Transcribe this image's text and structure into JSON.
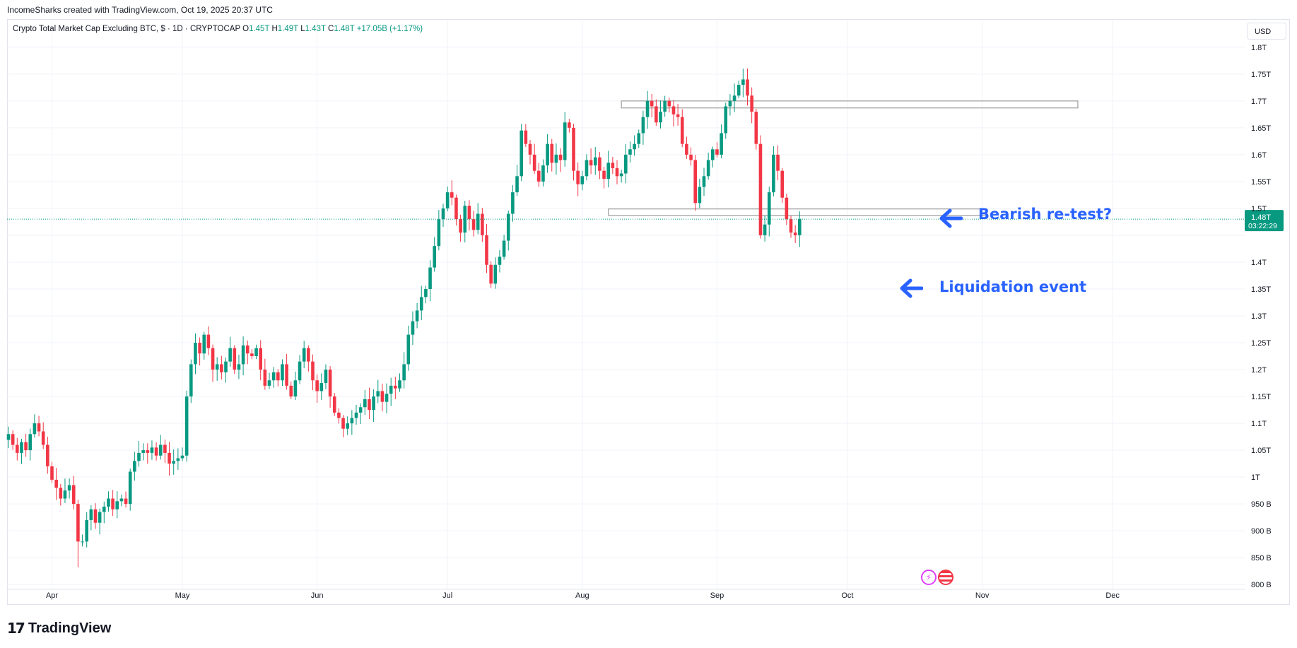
{
  "header": {
    "credit": "IncomeSharks created with TradingView.com, Oct 19, 2025 20:37 UTC"
  },
  "legend": {
    "symbol": "Crypto Total Market Cap Excluding BTC, $ · 1D · CRYPTOCAP",
    "o_label": "O",
    "o_value": "1.45T",
    "h_label": "H",
    "h_value": "1.49T",
    "l_label": "L",
    "l_value": "1.43T",
    "c_label": "C",
    "c_value": "1.48T",
    "change": "+17.05B (+1.17%)"
  },
  "currency_button": "USD",
  "price_tag": {
    "price": "1.48T",
    "countdown": "03:22:29",
    "color": "#089981"
  },
  "annotations": {
    "retest": "Bearish re-test?",
    "liquidation": "Liquidation event",
    "color": "#2962ff"
  },
  "footer": {
    "logo_mark": "17",
    "logo_text": "TradingView"
  },
  "events": [
    "lightning-icon",
    "us-flag-icon"
  ],
  "colors": {
    "up": "#089981",
    "down": "#f23645",
    "grid": "#f0f3fa",
    "axis_text": "#131722"
  },
  "chart_data": {
    "type": "candlestick",
    "title": "Crypto Total Market Cap Excluding BTC",
    "ylim_billions": [
      770,
      1830
    ],
    "y_ticks": [
      {
        "v": 800,
        "label": "800 B"
      },
      {
        "v": 850,
        "label": "850 B"
      },
      {
        "v": 900,
        "label": "900 B"
      },
      {
        "v": 950,
        "label": "950 B"
      },
      {
        "v": 1000,
        "label": "1T"
      },
      {
        "v": 1050,
        "label": "1.05T"
      },
      {
        "v": 1100,
        "label": "1.1T"
      },
      {
        "v": 1150,
        "label": "1.15T"
      },
      {
        "v": 1200,
        "label": "1.2T"
      },
      {
        "v": 1250,
        "label": "1.25T"
      },
      {
        "v": 1300,
        "label": "1.3T"
      },
      {
        "v": 1350,
        "label": "1.35T"
      },
      {
        "v": 1400,
        "label": "1.4T"
      },
      {
        "v": 1450,
        "label": ""
      },
      {
        "v": 1500,
        "label": "1.5T"
      },
      {
        "v": 1550,
        "label": "1.55T"
      },
      {
        "v": 1600,
        "label": "1.6T"
      },
      {
        "v": 1650,
        "label": "1.65T"
      },
      {
        "v": 1700,
        "label": "1.7T"
      },
      {
        "v": 1750,
        "label": "1.75T"
      },
      {
        "v": 1800,
        "label": "1.8T"
      }
    ],
    "x_ticks": [
      {
        "day": 10,
        "label": "Apr"
      },
      {
        "day": 40,
        "label": "May"
      },
      {
        "day": 71,
        "label": "Jun"
      },
      {
        "day": 101,
        "label": "Jul"
      },
      {
        "day": 132,
        "label": "Aug"
      },
      {
        "day": 163,
        "label": "Sep"
      },
      {
        "day": 193,
        "label": "Oct"
      },
      {
        "day": 224,
        "label": "Nov"
      },
      {
        "day": 254,
        "label": "Dec"
      }
    ],
    "last_price": 1480,
    "zones": [
      {
        "from_day": 141,
        "to_day": 246,
        "low": 1687,
        "high": 1700,
        "stroke": "#9e9e9e"
      },
      {
        "from_day": 138,
        "to_day": 225,
        "low": 1487,
        "high": 1499,
        "stroke": "#9e9e9e"
      }
    ],
    "closes": [
      1080,
      1060,
      1045,
      1065,
      1050,
      1080,
      1100,
      1085,
      1060,
      1020,
      995,
      980,
      960,
      975,
      985,
      950,
      880,
      880,
      920,
      940,
      915,
      935,
      945,
      960,
      940,
      955,
      960,
      950,
      1010,
      1030,
      1045,
      1050,
      1045,
      1055,
      1040,
      1060,
      1045,
      1025,
      1030,
      1035,
      1040,
      1150,
      1210,
      1250,
      1230,
      1265,
      1240,
      1200,
      1210,
      1195,
      1215,
      1240,
      1200,
      1210,
      1245,
      1230,
      1225,
      1240,
      1200,
      1170,
      1180,
      1195,
      1180,
      1210,
      1170,
      1150,
      1180,
      1215,
      1240,
      1215,
      1180,
      1160,
      1175,
      1200,
      1150,
      1120,
      1110,
      1090,
      1100,
      1110,
      1120,
      1130,
      1145,
      1125,
      1150,
      1160,
      1140,
      1155,
      1170,
      1165,
      1180,
      1210,
      1265,
      1290,
      1310,
      1335,
      1350,
      1390,
      1430,
      1480,
      1500,
      1530,
      1520,
      1480,
      1455,
      1505,
      1480,
      1460,
      1490,
      1450,
      1395,
      1360,
      1395,
      1410,
      1440,
      1490,
      1530,
      1560,
      1645,
      1620,
      1600,
      1570,
      1550,
      1580,
      1620,
      1585,
      1600,
      1590,
      1660,
      1650,
      1570,
      1545,
      1560,
      1590,
      1580,
      1595,
      1570,
      1555,
      1585,
      1575,
      1560,
      1565,
      1600,
      1610,
      1620,
      1640,
      1670,
      1700,
      1690,
      1660,
      1680,
      1700,
      1690,
      1675,
      1670,
      1620,
      1600,
      1590,
      1510,
      1540,
      1560,
      1590,
      1610,
      1600,
      1640,
      1690,
      1700,
      1710,
      1730,
      1740,
      1710,
      1680,
      1620,
      1450,
      1470,
      1530,
      1600,
      1570,
      1520,
      1480,
      1455,
      1450,
      1480
    ]
  }
}
